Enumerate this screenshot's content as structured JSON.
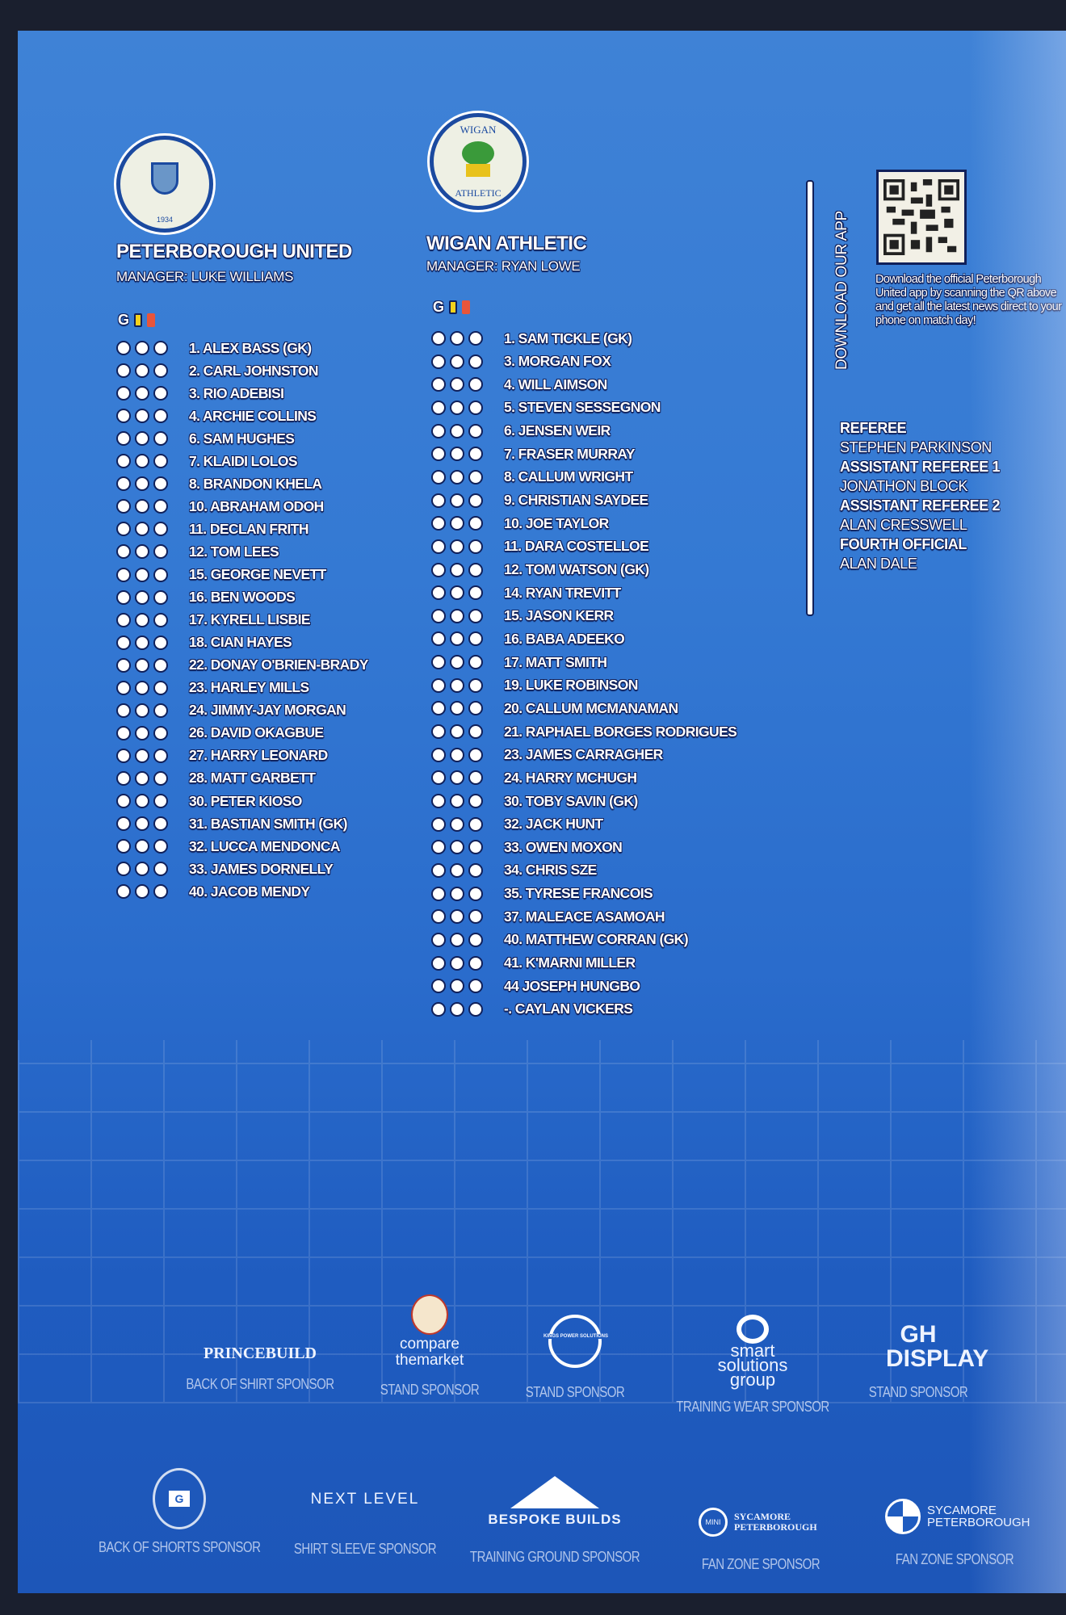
{
  "home": {
    "name": "PETERBOROUGH UNITED",
    "manager": "MANAGER: LUKE WILLIAMS",
    "crest_year": "1934",
    "players": [
      "1. ALEX BASS (GK)",
      "2. CARL JOHNSTON",
      "3. RIO ADEBISI",
      "4. ARCHIE COLLINS",
      "6. SAM HUGHES",
      "7. KLAIDI LOLOS",
      "8. BRANDON KHELA",
      "10. ABRAHAM ODOH",
      "11. DECLAN FRITH",
      "12. TOM LEES",
      "15. GEORGE NEVETT",
      "16. BEN WOODS",
      "17. KYRELL LISBIE",
      "18. CIAN HAYES",
      "22. DONAY O'BRIEN-BRADY",
      "23. HARLEY MILLS",
      "24. JIMMY-JAY MORGAN",
      "26. DAVID OKAGBUE",
      "27. HARRY LEONARD",
      "28. MATT GARBETT",
      "30. PETER KIOSO",
      "31. BASTIAN SMITH (GK)",
      "32. LUCCA MENDONCA",
      "33. JAMES DORNELLY",
      "40. JACOB MENDY"
    ]
  },
  "away": {
    "name": "WIGAN ATHLETIC",
    "manager": "MANAGER: RYAN LOWE",
    "crest_top": "WIGAN",
    "crest_bottom": "ATHLETIC",
    "players": [
      "1. SAM TICKLE (GK)",
      "3. MORGAN FOX",
      "4. WILL AIMSON",
      "5. STEVEN SESSEGNON",
      "6. JENSEN WEIR",
      "7. FRASER MURRAY",
      "8. CALLUM WRIGHT",
      "9. CHRISTIAN SAYDEE",
      "10. JOE TAYLOR",
      "11. DARA COSTELLOE",
      "12. TOM WATSON (GK)",
      "14. RYAN TREVITT",
      "15. JASON KERR",
      "16. BABA ADEEKO",
      "17. MATT SMITH",
      "19. LUKE ROBINSON",
      "20. CALLUM MCMANAMAN",
      "21. RAPHAEL BORGES RODRIGUES",
      "23. JAMES CARRAGHER",
      "24. HARRY MCHUGH",
      "30. TOBY SAVIN (GK)",
      "32. JACK HUNT",
      "33. OWEN MOXON",
      "34. CHRIS SZE",
      "35. TYRESE FRANCOIS",
      "37. MALEACE ASAMOAH",
      "40. MATTHEW CORRAN (GK)",
      "41. K'MARNI MILLER",
      "44  JOSEPH HUNGBO",
      "-. CAYLAN VICKERS"
    ]
  },
  "legend": {
    "goal": "G",
    "yellow": "#f3d21c",
    "red": "#e8553a"
  },
  "app": {
    "heading": "DOWNLOAD OUR APP",
    "text": "Download the official Peterborough United app by scanning the QR above and get all the latest news direct to your phone on match day!"
  },
  "officials": [
    {
      "role": "REFEREE",
      "name": "STEPHEN PARKINSON"
    },
    {
      "role": "ASSISTANT REFEREE 1",
      "name": "JONATHON BLOCK"
    },
    {
      "role": "ASSISTANT REFEREE 2",
      "name": "ALAN CRESSWELL"
    },
    {
      "role": "FOURTH OFFICIAL",
      "name": "ALAN DALE"
    }
  ],
  "sponsors": [
    {
      "logo": "PRINCEBUILD",
      "label": "BACK OF SHIRT SPONSOR"
    },
    {
      "logo": "compare themarket",
      "label": "STAND SPONSOR"
    },
    {
      "logo": "KINGS POWER SOLUTIONS",
      "label": "STAND SPONSOR"
    },
    {
      "logo": "smart solutions group",
      "label": "TRAINING WEAR SPONSOR"
    },
    {
      "logo": "GH DISPLAY",
      "label": "STAND SPONSOR"
    },
    {
      "logo": "G",
      "label": "BACK OF SHORTS SPONSOR"
    },
    {
      "logo": "NEXT LEVEL",
      "label": "SHIRT SLEEVE SPONSOR"
    },
    {
      "logo": "BESPOKE BUILDS",
      "label": "TRAINING GROUND SPONSOR"
    },
    {
      "logo": "SYCAMORE PETERBOROUGH",
      "label": "FAN ZONE SPONSOR"
    },
    {
      "logo": "SYCAMORE PETERBOROUGH",
      "label": "FAN ZONE SPONSOR"
    }
  ]
}
